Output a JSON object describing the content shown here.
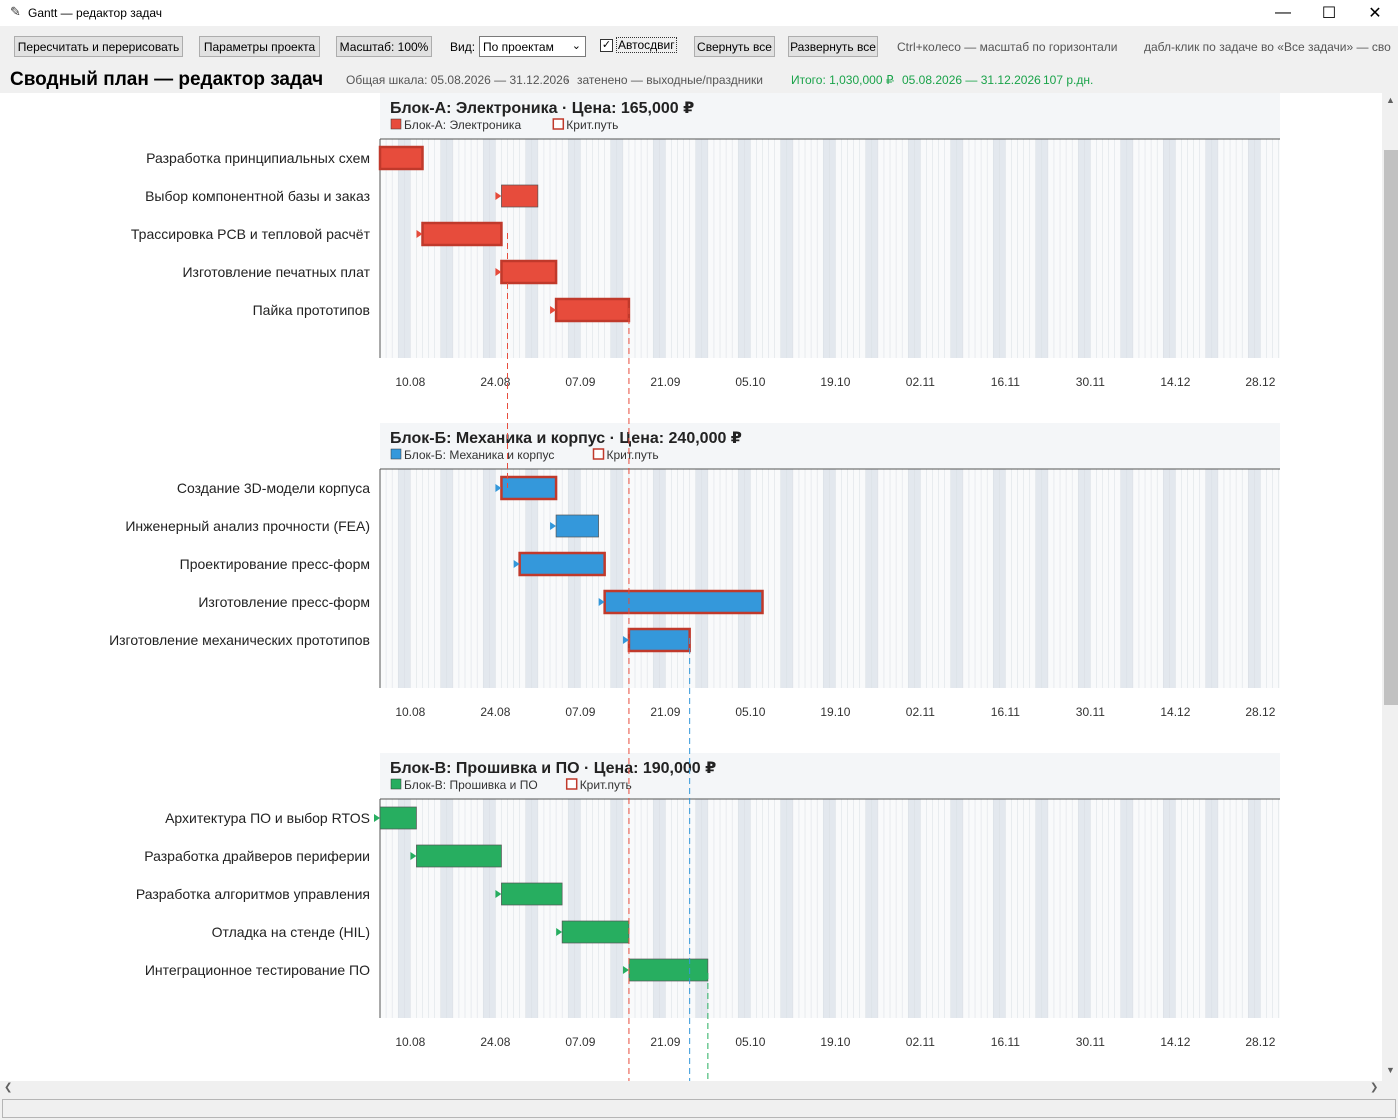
{
  "window": {
    "title": "Gantt — редактор задач"
  },
  "toolbar": {
    "recalc_label": "Пересчитать и перерисовать",
    "project_params_label": "Параметры проекта",
    "scale_label": "Масштаб: 100%",
    "view_label": "Вид:",
    "view_value": "По проектам",
    "autoshift_label": "Автосдвиг",
    "autoshift_checked": true,
    "collapse_all_label": "Свернуть все",
    "expand_all_label": "Развернуть все",
    "hint_zoom": "Ctrl+колесо — масштаб по горизонтали",
    "hint_dblclick": "дабл-клик по задаче во «Все задачи» — сво"
  },
  "header": {
    "title": "Сводный план — редактор задач",
    "scale_text": "Общая шкала: 05.08.2026 — 31.12.2026",
    "shade_text": "затенено — выходные/праздники",
    "total_text": "Итого: 1,030,000 ₽",
    "range_text": "05.08.2026 — 31.12.2026",
    "workdays_text": "107 р.дн.",
    "sep": "·"
  },
  "axis_ticks": [
    "10.08",
    "24.08",
    "07.09",
    "21.09",
    "05.10",
    "19.10",
    "02.11",
    "16.11",
    "30.11",
    "14.12",
    "28.12"
  ],
  "crit_legend_label": "Крит.путь",
  "colors": {
    "red": "#e74c3c",
    "blue": "#3498db",
    "green": "#27ae60",
    "crit_border": "#c0392b",
    "status_green": "#1aa34a"
  },
  "blocks": [
    {
      "title": "Блок-А: Электроника · Цена: 165,000 ₽",
      "legend": "Блок-А: Электроника",
      "color": "#e74c3c",
      "tasks": [
        {
          "name": "Разработка принципиальных схем",
          "start": "05.08",
          "end": "12.08",
          "crit": true
        },
        {
          "name": "Выбор компонентной базы и заказ",
          "start": "25.08",
          "end": "31.08",
          "crit": false
        },
        {
          "name": "Трассировка PCB и тепловой расчёт",
          "start": "12.08",
          "end": "25.08",
          "crit": true
        },
        {
          "name": "Изготовление печатных плат",
          "start": "25.08",
          "end": "03.09",
          "crit": true
        },
        {
          "name": "Пайка прототипов",
          "start": "03.09",
          "end": "15.09",
          "crit": true
        }
      ]
    },
    {
      "title": "Блок-Б: Механика и корпус · Цена: 240,000 ₽",
      "legend": "Блок-Б: Механика и корпус",
      "color": "#3498db",
      "tasks": [
        {
          "name": "Создание 3D-модели корпуса",
          "start": "25.08",
          "end": "03.09",
          "crit": true
        },
        {
          "name": "Инженерный анализ прочности (FEA)",
          "start": "03.09",
          "end": "10.09",
          "crit": false
        },
        {
          "name": "Проектирование пресс-форм",
          "start": "28.08",
          "end": "11.09",
          "crit": true
        },
        {
          "name": "Изготовление пресс-форм",
          "start": "11.09",
          "end": "07.10",
          "crit": true
        },
        {
          "name": "Изготовление механических прототипов",
          "start": "15.09",
          "end": "25.09",
          "crit": true
        }
      ]
    },
    {
      "title": "Блок-В: Прошивка и ПО · Цена: 190,000 ₽",
      "legend": "Блок-В: Прошивка и ПО",
      "color": "#27ae60",
      "tasks": [
        {
          "name": "Архитектура ПО и выбор RTOS",
          "start": "05.08",
          "end": "11.08",
          "crit": false
        },
        {
          "name": "Разработка драйверов периферии",
          "start": "11.08",
          "end": "25.08",
          "crit": false
        },
        {
          "name": "Разработка алгоритмов управления",
          "start": "25.08",
          "end": "04.09",
          "crit": false
        },
        {
          "name": "Отладка на стенде (HIL)",
          "start": "04.09",
          "end": "15.09",
          "crit": false
        },
        {
          "name": "Интеграционное тестирование ПО",
          "start": "15.09",
          "end": "28.09",
          "crit": false
        }
      ]
    }
  ]
}
